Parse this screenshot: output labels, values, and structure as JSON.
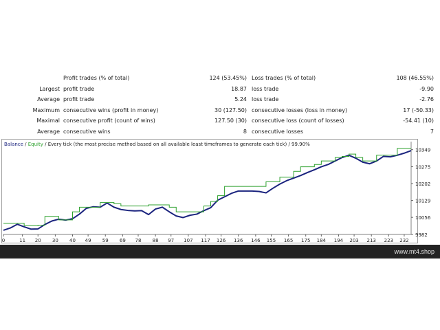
{
  "stats": [
    {
      "prefix": "",
      "label1": "Profit trades (% of total)",
      "value1": "124 (53.45%)",
      "label2": "Loss trades (% of total)",
      "value2": "108 (46.55%)"
    },
    {
      "prefix": "Largest",
      "label1": "profit trade",
      "value1": "18.87",
      "label2": "loss trade",
      "value2": "-9.90"
    },
    {
      "prefix": "Average",
      "label1": "profit trade",
      "value1": "5.24",
      "label2": "loss trade",
      "value2": "-2.76"
    },
    {
      "prefix": "Maximum",
      "label1": "consecutive wins (profit in money)",
      "value1": "30 (127.50)",
      "label2": "consecutive losses (loss in money)",
      "value2": "17 (-50.33)"
    },
    {
      "prefix": "Maximal",
      "label1": "consecutive profit (count of wins)",
      "value1": "127.50 (30)",
      "label2": "consecutive loss (count of losses)",
      "value2": "-54.41 (10)"
    },
    {
      "prefix": "Average",
      "label1": "consecutive wins",
      "value1": "8",
      "label2": "consecutive losses",
      "value2": "7"
    }
  ],
  "legend": {
    "balance": "Balance",
    "sep1": " / ",
    "equity": "Equity",
    "sep2": " / ",
    "model": "Every tick (the most precise method based on all available least timeframes to generate each tick)",
    "sep3": " / ",
    "quality": "99.90%"
  },
  "footer": {
    "site": "www.mt4.shop"
  },
  "chart_data": {
    "type": "line",
    "x_ticks": [
      "0",
      "11",
      "20",
      "30",
      "40",
      "49",
      "59",
      "69",
      "78",
      "88",
      "97",
      "107",
      "117",
      "126",
      "136",
      "146",
      "155",
      "165",
      "175",
      "184",
      "194",
      "203",
      "213",
      "223",
      "232"
    ],
    "x_tick_values": [
      0,
      11,
      20,
      30,
      40,
      49,
      59,
      69,
      78,
      88,
      97,
      107,
      117,
      126,
      136,
      146,
      155,
      165,
      175,
      184,
      194,
      203,
      213,
      223,
      232
    ],
    "y_ticks": [
      "9982",
      "10056",
      "10129",
      "10202",
      "10275",
      "10349"
    ],
    "y_tick_values": [
      9982,
      10056,
      10129,
      10202,
      10275,
      10349
    ],
    "xlim": [
      0,
      236
    ],
    "ylim": [
      9982,
      10372
    ],
    "colors": {
      "balance": "#1a237e",
      "equity": "#2ca02c"
    },
    "series": [
      {
        "name": "Balance",
        "x": [
          0,
          4,
          8,
          12,
          16,
          20,
          24,
          28,
          32,
          36,
          40,
          44,
          48,
          52,
          56,
          60,
          64,
          68,
          72,
          76,
          80,
          84,
          88,
          92,
          96,
          100,
          104,
          108,
          112,
          116,
          120,
          124,
          128,
          132,
          136,
          140,
          144,
          148,
          152,
          156,
          160,
          164,
          168,
          172,
          176,
          180,
          184,
          188,
          192,
          196,
          200,
          204,
          208,
          212,
          216,
          220,
          224,
          228,
          232,
          236
        ],
        "y": [
          10000,
          10010,
          10026,
          10015,
          10005,
          10006,
          10025,
          10040,
          10048,
          10044,
          10050,
          10070,
          10095,
          10102,
          10100,
          10118,
          10100,
          10090,
          10086,
          10084,
          10085,
          10068,
          10092,
          10100,
          10080,
          10062,
          10055,
          10065,
          10070,
          10085,
          10098,
          10130,
          10145,
          10160,
          10170,
          10170,
          10170,
          10168,
          10162,
          10182,
          10200,
          10215,
          10226,
          10237,
          10250,
          10262,
          10275,
          10285,
          10300,
          10315,
          10325,
          10312,
          10295,
          10288,
          10300,
          10320,
          10318,
          10325,
          10334,
          10345
        ]
      },
      {
        "name": "Equity",
        "x": [
          0,
          4,
          8,
          12,
          16,
          20,
          24,
          28,
          32,
          36,
          40,
          44,
          48,
          52,
          56,
          60,
          64,
          68,
          72,
          76,
          80,
          84,
          88,
          92,
          96,
          100,
          104,
          108,
          112,
          116,
          120,
          124,
          128,
          132,
          136,
          140,
          144,
          148,
          152,
          156,
          160,
          164,
          168,
          172,
          176,
          180,
          184,
          188,
          192,
          196,
          200,
          204,
          208,
          212,
          216,
          220,
          224,
          228,
          232,
          236
        ],
        "y": [
          10030,
          10030,
          10030,
          10020,
          10020,
          10022,
          10060,
          10060,
          10045,
          10045,
          10080,
          10100,
          10100,
          10100,
          10120,
          10120,
          10115,
          10105,
          10105,
          10105,
          10105,
          10110,
          10110,
          10110,
          10100,
          10080,
          10080,
          10080,
          10080,
          10105,
          10125,
          10150,
          10190,
          10190,
          10190,
          10190,
          10190,
          10190,
          10210,
          10210,
          10230,
          10230,
          10255,
          10275,
          10275,
          10285,
          10300,
          10300,
          10315,
          10320,
          10330,
          10315,
          10300,
          10300,
          10325,
          10325,
          10325,
          10355,
          10355,
          10355
        ]
      }
    ]
  }
}
